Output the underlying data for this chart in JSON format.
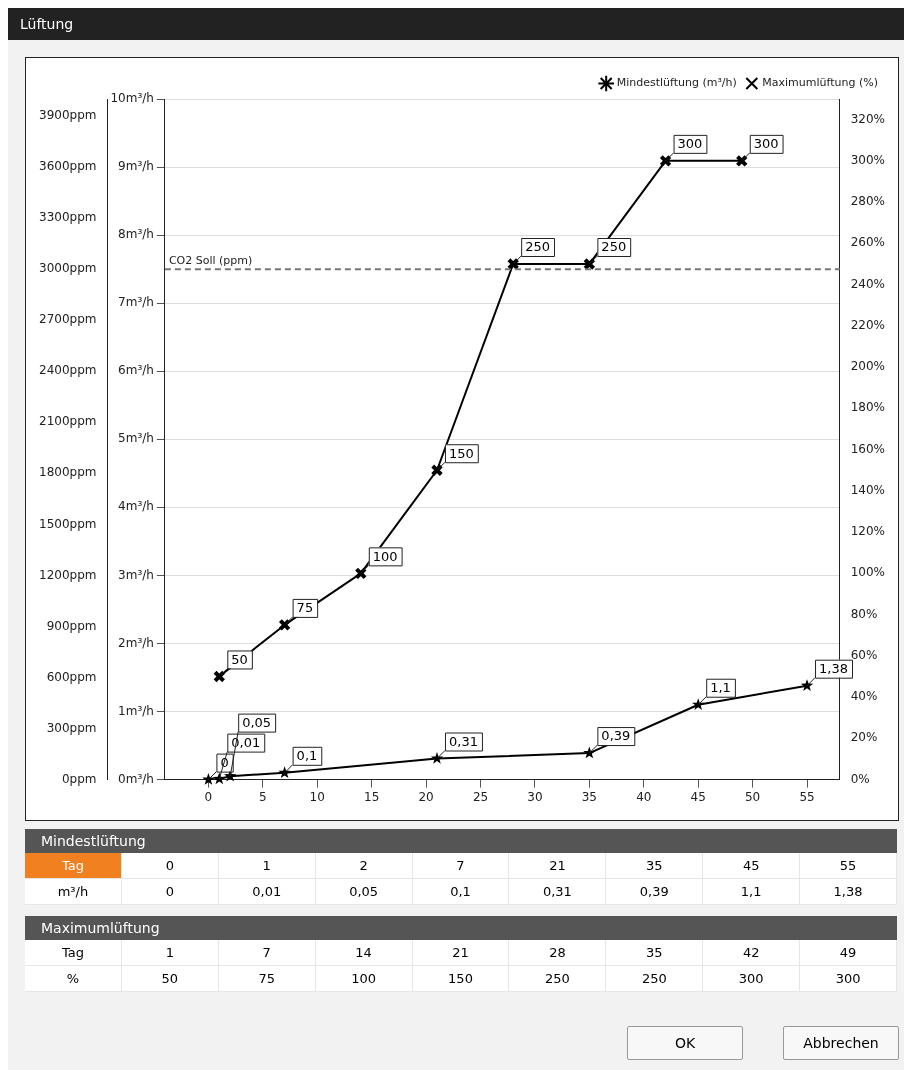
{
  "chart_data": {
    "type": "line",
    "title": "Lüftung",
    "xlim": [
      -4,
      58
    ],
    "xticks": [
      0,
      5,
      10,
      15,
      20,
      25,
      30,
      35,
      40,
      45,
      50,
      55
    ],
    "ylim": [
      0,
      10
    ],
    "yticks": [
      {
        "value": 0,
        "label": "0m³/h"
      },
      {
        "value": 1,
        "label": "1m³/h"
      },
      {
        "value": 2,
        "label": "2m³/h"
      },
      {
        "value": 3,
        "label": "3m³/h"
      },
      {
        "value": 4,
        "label": "4m³/h"
      },
      {
        "value": 5,
        "label": "5m³/h"
      },
      {
        "value": 6,
        "label": "6m³/h"
      },
      {
        "value": 7,
        "label": "7m³/h"
      },
      {
        "value": 8,
        "label": "8m³/h"
      },
      {
        "value": 9,
        "label": "9m³/h"
      },
      {
        "value": 10,
        "label": "10m³/h"
      }
    ],
    "y2lim": [
      0,
      330
    ],
    "y2ticks": [
      {
        "value": 0,
        "label": "0%"
      },
      {
        "value": 20,
        "label": "20%"
      },
      {
        "value": 40,
        "label": "40%"
      },
      {
        "value": 60,
        "label": "60%"
      },
      {
        "value": 80,
        "label": "80%"
      },
      {
        "value": 100,
        "label": "100%"
      },
      {
        "value": 120,
        "label": "120%"
      },
      {
        "value": 140,
        "label": "140%"
      },
      {
        "value": 160,
        "label": "160%"
      },
      {
        "value": 180,
        "label": "180%"
      },
      {
        "value": 200,
        "label": "200%"
      },
      {
        "value": 220,
        "label": "220%"
      },
      {
        "value": 240,
        "label": "240%"
      },
      {
        "value": 260,
        "label": "260%"
      },
      {
        "value": 280,
        "label": "280%"
      },
      {
        "value": 300,
        "label": "300%"
      },
      {
        "value": 320,
        "label": "320%"
      }
    ],
    "y3lim": [
      0,
      4000
    ],
    "y3ticks": [
      {
        "value": 0,
        "label": "0ppm"
      },
      {
        "value": 300,
        "label": "300ppm"
      },
      {
        "value": 600,
        "label": "600ppm"
      },
      {
        "value": 900,
        "label": "900ppm"
      },
      {
        "value": 1200,
        "label": "1200ppm"
      },
      {
        "value": 1500,
        "label": "1500ppm"
      },
      {
        "value": 1800,
        "label": "1800ppm"
      },
      {
        "value": 2100,
        "label": "2100ppm"
      },
      {
        "value": 2400,
        "label": "2400ppm"
      },
      {
        "value": 2700,
        "label": "2700ppm"
      },
      {
        "value": 3000,
        "label": "3000ppm"
      },
      {
        "value": 3300,
        "label": "3300ppm"
      },
      {
        "value": 3600,
        "label": "3600ppm"
      },
      {
        "value": 3900,
        "label": "3900ppm"
      }
    ],
    "grid": "y",
    "legend": "top right",
    "series": [
      {
        "name": "Mindestlüftung (m³/h)",
        "color": "#000000",
        "marker": "star",
        "x": [
          0,
          1,
          2,
          7,
          21,
          35,
          45,
          55
        ],
        "values": [
          0,
          0.01,
          0.05,
          0.1,
          0.31,
          0.39,
          1.1,
          1.38
        ],
        "value_labels": [
          "0",
          "0,01",
          "0,05",
          "0,1",
          "0,31",
          "0,39",
          "1,1",
          "1,38"
        ]
      },
      {
        "name": "Maximumlüftung (%)",
        "color": "#000000",
        "marker": "cross",
        "axis": "y2",
        "x": [
          1,
          7,
          14,
          21,
          28,
          35,
          42,
          49
        ],
        "values": [
          50,
          75,
          100,
          150,
          250,
          250,
          300,
          300
        ],
        "value_labels": [
          "50",
          "75",
          "100",
          "150",
          "250",
          "250",
          "300",
          "300"
        ]
      }
    ],
    "ref_lines": [
      {
        "axis": "y3",
        "value": 3000,
        "label": "CO2 Soll (ppm)",
        "color": "#777777",
        "line_style": "dashed"
      }
    ],
    "annotations": [
      "Mindestlüftung",
      "Tag",
      "m³/h",
      "Maximumlüftung",
      "%",
      "OK",
      "Abbrechen",
      "0",
      "1",
      "2",
      "7",
      "21",
      "35",
      "45",
      "55",
      "1",
      "7",
      "14",
      "21",
      "28",
      "35",
      "42",
      "49"
    ]
  }
}
